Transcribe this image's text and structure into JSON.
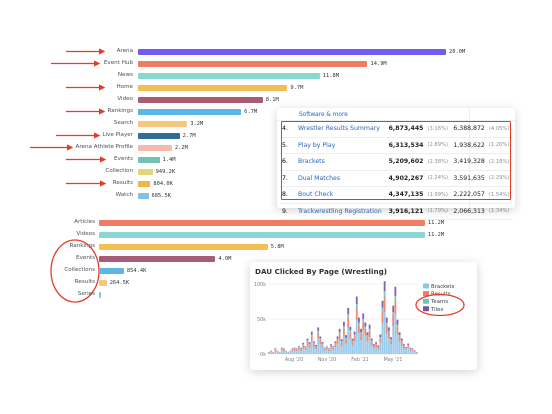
{
  "chart_data": [
    {
      "type": "bar",
      "orientation": "horizontal",
      "categories": [
        "Arena",
        "Event Hub",
        "News",
        "Home",
        "Video",
        "Rankings",
        "Search",
        "Live Player",
        "Arena Athlete Profile",
        "Events",
        "Collection",
        "Results",
        "Watch"
      ],
      "values": [
        20.0,
        14.9,
        11.8,
        9.7,
        8.1,
        6.7,
        3.2,
        2.7,
        2.2,
        1.4,
        949.2,
        804.0,
        685.5
      ],
      "value_labels": [
        "20.0M",
        "14.9M",
        "11.8M",
        "9.7M",
        "8.1M",
        "6.7M",
        "3.2M",
        "2.7M",
        "2.2M",
        "1.4M",
        "949.2K",
        "804.0K",
        "685.5K"
      ],
      "values_in_millions": [
        20.0,
        14.9,
        11.8,
        9.7,
        8.1,
        6.7,
        3.2,
        2.7,
        2.2,
        1.4,
        0.9492,
        0.804,
        0.6855
      ],
      "colors": [
        "#6f5cf0",
        "#ef7d63",
        "#8ad7d0",
        "#f2bf55",
        "#a85b75",
        "#5cb7e8",
        "#f4c77f",
        "#2f6e96",
        "#f6b9ac",
        "#73c1b4",
        "#e0d77a",
        "#f1b446",
        "#83c1e3"
      ],
      "arrowed": [
        "Arena",
        "Event Hub",
        "Home",
        "Rankings",
        "Live Player",
        "Arena Athlete Profile",
        "Events",
        "Results"
      ]
    },
    {
      "type": "bar",
      "orientation": "horizontal",
      "categories": [
        "Articles",
        "Videos",
        "Rankings",
        "Events",
        "Collections",
        "Results",
        "Series"
      ],
      "values": [
        11.2,
        11.2,
        5.8,
        4.0,
        854.4,
        264.5,
        0
      ],
      "value_labels": [
        "11.2M",
        "11.2M",
        "5.8M",
        "4.0M",
        "854.4K",
        "264.5K",
        ""
      ],
      "values_in_millions": [
        11.2,
        11.2,
        5.8,
        4.0,
        0.8544,
        0.2645,
        0.01
      ],
      "colors": [
        "#ef7d63",
        "#8ad7d0",
        "#f2bf55",
        "#a85b75",
        "#5cb7e8",
        "#f4c77f",
        "#83c1e3"
      ],
      "circled": [
        "Rankings",
        "Events",
        "Collections",
        "Results",
        "Series"
      ]
    },
    {
      "type": "area",
      "title": "DAU Clicked By Page (Wrestling)",
      "x_ticks": [
        "Aug '20",
        "Nov '20",
        "Feb '21",
        "May '21"
      ],
      "y_ticks": [
        "100k",
        "50k",
        "0k"
      ],
      "ylim": [
        0,
        100000
      ],
      "legend": [
        {
          "name": "Brackets",
          "color": "#8ec5ea"
        },
        {
          "name": "Results",
          "color": "#ef7d63"
        },
        {
          "name": "Teams",
          "color": "#73c1b4"
        },
        {
          "name": "Tiles",
          "color": "#7a52a6"
        }
      ],
      "legend_position": "right",
      "series": [
        {
          "name": "Brackets",
          "values": [
            2,
            3,
            2,
            4,
            3,
            2,
            5,
            4,
            3,
            2,
            3,
            4,
            5,
            4,
            6,
            5,
            8,
            6,
            12,
            9,
            18,
            10,
            7,
            22,
            14,
            9,
            5,
            6,
            4,
            8,
            6,
            10,
            14,
            20,
            11,
            26,
            15,
            38,
            22,
            12,
            18,
            48,
            30,
            20,
            34,
            26,
            18,
            24,
            12,
            8,
            10,
            6,
            16,
            44,
            60,
            30,
            22,
            14,
            40,
            56,
            28,
            18,
            12,
            8,
            6,
            9,
            5,
            4,
            3,
            2
          ]
        },
        {
          "name": "Results",
          "values": [
            1,
            1,
            1,
            2,
            1,
            1,
            2,
            2,
            1,
            1,
            1,
            2,
            2,
            2,
            3,
            2,
            4,
            3,
            5,
            4,
            7,
            4,
            3,
            8,
            6,
            4,
            2,
            3,
            2,
            3,
            3,
            4,
            6,
            8,
            5,
            10,
            6,
            14,
            9,
            5,
            7,
            17,
            11,
            8,
            12,
            10,
            7,
            9,
            5,
            3,
            4,
            3,
            6,
            16,
            22,
            11,
            8,
            5,
            15,
            20,
            10,
            7,
            5,
            3,
            2,
            3,
            2,
            2,
            1,
            1
          ]
        },
        {
          "name": "Teams",
          "values": [
            0,
            1,
            0,
            1,
            1,
            0,
            1,
            1,
            1,
            0,
            1,
            1,
            1,
            1,
            1,
            1,
            2,
            1,
            2,
            2,
            3,
            2,
            1,
            3,
            2,
            2,
            1,
            1,
            1,
            1,
            1,
            2,
            2,
            3,
            2,
            4,
            2,
            5,
            3,
            2,
            3,
            6,
            4,
            3,
            4,
            3,
            2,
            3,
            2,
            1,
            1,
            1,
            2,
            6,
            8,
            4,
            3,
            2,
            5,
            7,
            4,
            2,
            2,
            1,
            1,
            1,
            1,
            1,
            0,
            0
          ]
        },
        {
          "name": "Tiles",
          "values": [
            0,
            0,
            0,
            1,
            0,
            0,
            1,
            1,
            0,
            0,
            0,
            1,
            1,
            1,
            1,
            1,
            2,
            1,
            3,
            2,
            4,
            2,
            2,
            5,
            3,
            2,
            1,
            1,
            1,
            2,
            1,
            2,
            3,
            5,
            3,
            6,
            4,
            9,
            5,
            3,
            4,
            11,
            7,
            5,
            8,
            6,
            4,
            6,
            3,
            2,
            2,
            2,
            4,
            10,
            14,
            7,
            5,
            3,
            9,
            13,
            7,
            4,
            3,
            2,
            1,
            2,
            1,
            1,
            1,
            0
          ]
        }
      ]
    }
  ],
  "table": {
    "partial_row": "Software & more",
    "rows": [
      {
        "rank": "4.",
        "name": "Wrestler Results Summary",
        "value": "6,873,445",
        "pct": "(3.16%)",
        "value2": "6,388,872",
        "pct2": "(4.05%)"
      },
      {
        "rank": "5.",
        "name": "Play by Play",
        "value": "6,313,534",
        "pct": "(2.89%)",
        "value2": "1,938,622",
        "pct2": "(1.20%)"
      },
      {
        "rank": "6.",
        "name": "Brackets",
        "value": "5,209,602",
        "pct": "(2.38%)",
        "value2": "3,419,328",
        "pct2": "(2.18%)"
      },
      {
        "rank": "7.",
        "name": "Dual Matches",
        "value": "4,902,267",
        "pct": "(2.24%)",
        "value2": "3,591,635",
        "pct2": "(2.29%)"
      },
      {
        "rank": "8.",
        "name": "Bout Check",
        "value": "4,347,135",
        "pct": "(1.99%)",
        "value2": "2,222,057",
        "pct2": "(1.54%)"
      },
      {
        "rank": "9.",
        "name": "Trackwrestling Registration",
        "value": "3,916,121",
        "pct": "(1.79%)",
        "value2": "2,066,313",
        "pct2": "(1.34%)"
      }
    ]
  },
  "annotation_color": "#e53c2a"
}
